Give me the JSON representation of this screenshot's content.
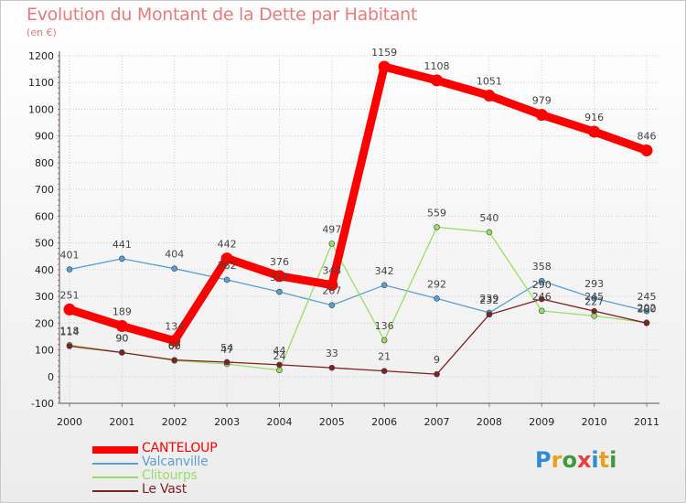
{
  "header": {
    "title": "Evolution du Montant de la Dette par Habitant",
    "unit": "(en €)"
  },
  "chart_data": {
    "type": "line",
    "title": "Evolution du Montant de la Dette par Habitant",
    "ylabel": "(en €)",
    "xlabel": "",
    "ylim": [
      -100,
      1200
    ],
    "y_ticks": [
      -100,
      0,
      100,
      200,
      300,
      400,
      500,
      600,
      700,
      800,
      900,
      1000,
      1100,
      1200
    ],
    "categories": [
      "2000",
      "2001",
      "2002",
      "2003",
      "2004",
      "2005",
      "2006",
      "2007",
      "2008",
      "2009",
      "2010",
      "2011"
    ],
    "grid": true,
    "legend_position": "bottom-left",
    "series": [
      {
        "name": "CANTELOUP",
        "color": "#ff0000",
        "values": [
          251,
          189,
          134,
          442,
          376,
          343,
          1159,
          1108,
          1051,
          979,
          916,
          846
        ],
        "labels": [
          "251",
          "189",
          "134",
          "442",
          "376",
          "343",
          "1159",
          "1108",
          "1051",
          "979",
          "916",
          "846"
        ]
      },
      {
        "name": "Valcanville",
        "color": "#5a9fd4",
        "values": [
          401,
          441,
          404,
          362,
          317,
          267,
          342,
          292,
          239,
          358,
          293,
          245
        ],
        "labels": [
          "401",
          "441",
          "404",
          "362",
          "317",
          "267",
          "342",
          "292",
          "239",
          "358",
          "293",
          "245"
        ]
      },
      {
        "name": "Clitourps",
        "color": "#99dd66",
        "values": [
          118,
          90,
          60,
          47,
          24,
          497,
          136,
          559,
          540,
          246,
          227,
          202
        ],
        "labels": [
          "118",
          "90",
          "60",
          "47",
          "24",
          "497",
          "136",
          "559",
          "540",
          "246",
          "227",
          "202"
        ]
      },
      {
        "name": "Le Vast",
        "color": "#802020",
        "values": [
          114,
          90,
          62,
          54,
          44,
          33,
          21,
          9,
          232,
          290,
          245,
          200
        ],
        "labels": [
          "114",
          "90",
          "62",
          "54",
          "44",
          "33",
          "21",
          "9",
          "232",
          "290",
          "245",
          "200"
        ]
      }
    ]
  },
  "logo": {
    "text": "Proxiti",
    "colors": [
      "#2e8bd6",
      "#e8a020",
      "#3c9a3c",
      "#e84040",
      "#2e8bd6",
      "#e8a020",
      "#3c9a3c"
    ]
  }
}
